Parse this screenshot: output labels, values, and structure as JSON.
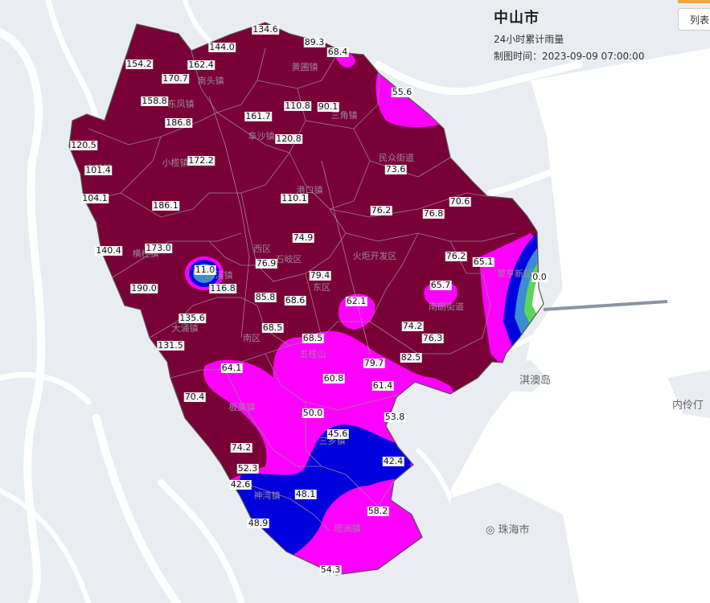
{
  "header": {
    "city": "中山市",
    "subtitle": "24小时累计雨量",
    "time": "制图时间：2023-09-09 07:00:00"
  },
  "list_button": "列表",
  "places": {
    "qiao": "淇澳岛",
    "neiling": "内伶仃",
    "zhuhai": "珠海市"
  },
  "colors": {
    "level_50_100": "#7a0038",
    "level_25_50": "#ff00ff",
    "level_10_25": "#0000dd",
    "level_5_10": "#3c8cd2",
    "level_0_5": "#5ed45a",
    "sea": "#ffffff",
    "land": "#e9edf2"
  },
  "towns": [
    "黄圃镇",
    "南头镇",
    "东凤镇",
    "阜沙镇",
    "三角镇",
    "民众街道",
    "小榄镇",
    "港口镇",
    "古镇镇",
    "横栏镇",
    "西区",
    "石岐区",
    "火炬开发区",
    "东区",
    "南朗街道",
    "沙溪镇",
    "大涌镇",
    "南区",
    "五桂山",
    "板芙镇",
    "三乡镇",
    "神湾镇",
    "坦洲镇",
    "翠亨新区"
  ],
  "stations": [
    "134.6",
    "144.0",
    "89.3",
    "68.4",
    "154.2",
    "162.4",
    "170.7",
    "158.8",
    "55.6",
    "110.8",
    "90.1",
    "161.7",
    "186.8",
    "120.8",
    "120.5",
    "101.4",
    "172.2",
    "73.6",
    "110.1",
    "104.1",
    "186.1",
    "76.2",
    "76.8",
    "70.6",
    "140.4",
    "173.0",
    "74.9",
    "76.2",
    "65.1",
    "11.0",
    "76.9",
    "79.4",
    "0.0",
    "116.8",
    "65.7",
    "190.0",
    "85.8",
    "68.6",
    "62.1",
    "135.6",
    "74.2",
    "68.5",
    "68.5",
    "76.3",
    "131.5",
    "82.5",
    "79.7",
    "64.1",
    "60.8",
    "61.4",
    "70.4",
    "50.0",
    "53.8",
    "45.6",
    "74.2",
    "42.4",
    "52.3",
    "42.6",
    "48.1",
    "58.2",
    "48.9",
    "54.3"
  ]
}
